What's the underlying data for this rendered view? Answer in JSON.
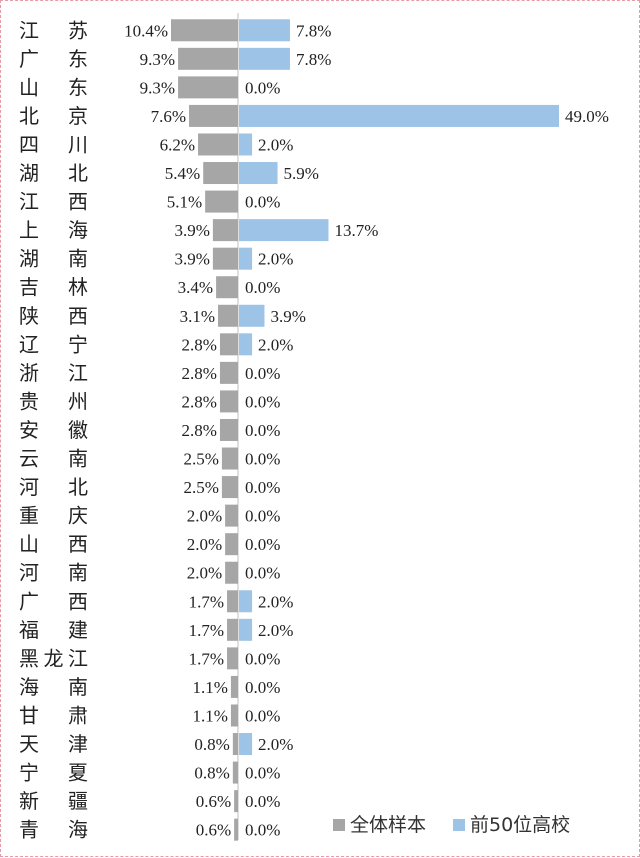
{
  "chart_data": {
    "type": "bar",
    "orientation": "horizontal-diverging",
    "categories": [
      "江苏",
      "广东",
      "山东",
      "北京",
      "四川",
      "湖北",
      "江西",
      "上海",
      "湖南",
      "吉林",
      "陕西",
      "辽宁",
      "浙江",
      "贵州",
      "安徽",
      "云南",
      "河北",
      "重庆",
      "山西",
      "河南",
      "广西",
      "福建",
      "黑龙江",
      "海南",
      "甘肃",
      "天津",
      "宁夏",
      "新疆",
      "青海"
    ],
    "series": [
      {
        "name": "全体样本",
        "color": "#a6a6a6",
        "values": [
          10.4,
          9.3,
          9.3,
          7.6,
          6.2,
          5.4,
          5.1,
          3.9,
          3.9,
          3.4,
          3.1,
          2.8,
          2.8,
          2.8,
          2.8,
          2.5,
          2.5,
          2.0,
          2.0,
          2.0,
          1.7,
          1.7,
          1.7,
          1.1,
          1.1,
          0.8,
          0.8,
          0.6,
          0.6
        ],
        "labels": [
          "10.4%",
          "9.3%",
          "9.3%",
          "7.6%",
          "6.2%",
          "5.4%",
          "5.1%",
          "3.9%",
          "3.9%",
          "3.4%",
          "3.1%",
          "2.8%",
          "2.8%",
          "2.8%",
          "2.8%",
          "2.5%",
          "2.5%",
          "2.0%",
          "2.0%",
          "2.0%",
          "1.7%",
          "1.7%",
          "1.7%",
          "1.1%",
          "1.1%",
          "0.8%",
          "0.8%",
          "0.6%",
          "0.6%"
        ]
      },
      {
        "name": "前50位高校",
        "color": "#9dc3e6",
        "values": [
          7.8,
          7.8,
          0.0,
          49.0,
          2.0,
          5.9,
          0.0,
          13.7,
          2.0,
          0.0,
          3.9,
          2.0,
          0.0,
          0.0,
          0.0,
          0.0,
          0.0,
          0.0,
          0.0,
          0.0,
          2.0,
          2.0,
          0.0,
          0.0,
          0.0,
          2.0,
          0.0,
          0.0,
          0.0
        ],
        "labels": [
          "7.8%",
          "7.8%",
          "0.0%",
          "49.0%",
          "2.0%",
          "5.9%",
          "0.0%",
          "13.7%",
          "2.0%",
          "0.0%",
          "3.9%",
          "2.0%",
          "0.0%",
          "0.0%",
          "0.0%",
          "0.0%",
          "0.0%",
          "0.0%",
          "0.0%",
          "0.0%",
          "2.0%",
          "2.0%",
          "0.0%",
          "0.0%",
          "0.0%",
          "2.0%",
          "0.0%",
          "0.0%",
          "0.0%"
        ]
      }
    ],
    "legend": {
      "position": "bottom-right"
    },
    "grid": false
  }
}
